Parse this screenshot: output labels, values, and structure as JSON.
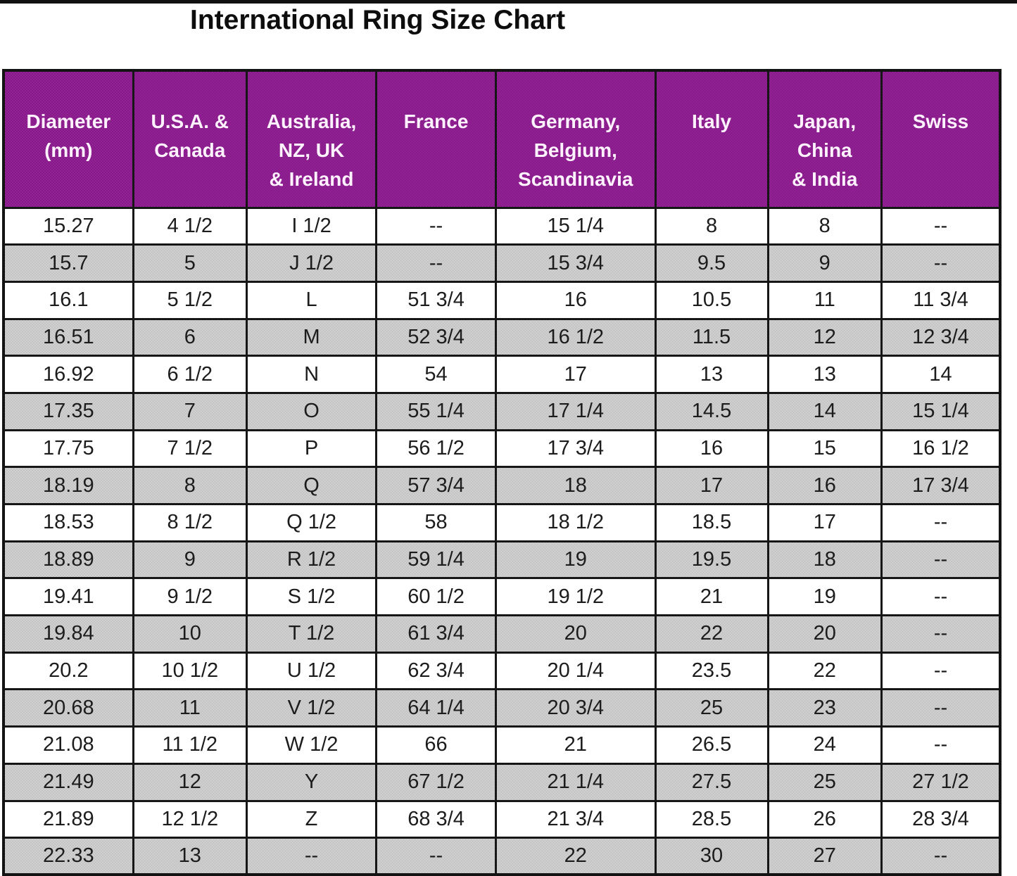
{
  "title": "International Ring Size Chart",
  "colors": {
    "header_bg": "#8C1E8E",
    "header_text": "#FDF2FD",
    "shaded_row_bg": "#C9C9C9",
    "plain_row_bg": "#FFFFFF",
    "border": "#161616",
    "body_text": "#1C1C1C",
    "top_strip": "#101010"
  },
  "table": {
    "headers": [
      {
        "id": "diameter-mm",
        "lines": [
          "Diameter",
          "(mm)"
        ]
      },
      {
        "id": "usa-canada",
        "lines": [
          "U.S.A. &",
          "Canada"
        ]
      },
      {
        "id": "australia-nz-uk-ireland",
        "lines": [
          "Australia,",
          "NZ, UK",
          "& Ireland"
        ]
      },
      {
        "id": "france",
        "lines": [
          "France"
        ]
      },
      {
        "id": "germany-belgium-scandinavia",
        "lines": [
          "Germany,",
          "Belgium,",
          "Scandinavia"
        ]
      },
      {
        "id": "italy",
        "lines": [
          "Italy"
        ]
      },
      {
        "id": "japan-china-india",
        "lines": [
          "Japan,",
          "China",
          "& India"
        ]
      },
      {
        "id": "swiss",
        "lines": [
          "Swiss"
        ]
      }
    ]
  },
  "chart_data": {
    "type": "table",
    "title": "International Ring Size Chart",
    "columns": [
      "Diameter (mm)",
      "U.S.A. & Canada",
      "Australia, NZ, UK & Ireland",
      "France",
      "Germany, Belgium, Scandinavia",
      "Italy",
      "Japan, China & India",
      "Swiss"
    ],
    "rows": [
      [
        "15.27",
        "4 1/2",
        "I 1/2",
        "--",
        "15 1/4",
        "8",
        "8",
        "--"
      ],
      [
        "15.7",
        "5",
        "J 1/2",
        "--",
        "15 3/4",
        "9.5",
        "9",
        "--"
      ],
      [
        "16.1",
        "5 1/2",
        "L",
        "51 3/4",
        "16",
        "10.5",
        "11",
        "11 3/4"
      ],
      [
        "16.51",
        "6",
        "M",
        "52 3/4",
        "16 1/2",
        "11.5",
        "12",
        "12 3/4"
      ],
      [
        "16.92",
        "6 1/2",
        "N",
        "54",
        "17",
        "13",
        "13",
        "14"
      ],
      [
        "17.35",
        "7",
        "O",
        "55 1/4",
        "17 1/4",
        "14.5",
        "14",
        "15 1/4"
      ],
      [
        "17.75",
        "7 1/2",
        "P",
        "56 1/2",
        "17 3/4",
        "16",
        "15",
        "16 1/2"
      ],
      [
        "18.19",
        "8",
        "Q",
        "57 3/4",
        "18",
        "17",
        "16",
        "17 3/4"
      ],
      [
        "18.53",
        "8 1/2",
        "Q 1/2",
        "58",
        "18 1/2",
        "18.5",
        "17",
        "--"
      ],
      [
        "18.89",
        "9",
        "R 1/2",
        "59 1/4",
        "19",
        "19.5",
        "18",
        "--"
      ],
      [
        "19.41",
        "9 1/2",
        "S 1/2",
        "60 1/2",
        "19 1/2",
        "21",
        "19",
        "--"
      ],
      [
        "19.84",
        "10",
        "T 1/2",
        "61 3/4",
        "20",
        "22",
        "20",
        "--"
      ],
      [
        "20.2",
        "10 1/2",
        "U 1/2",
        "62 3/4",
        "20 1/4",
        "23.5",
        "22",
        "--"
      ],
      [
        "20.68",
        "11",
        "V 1/2",
        "64 1/4",
        "20 3/4",
        "25",
        "23",
        "--"
      ],
      [
        "21.08",
        "11 1/2",
        "W 1/2",
        "66",
        "21",
        "26.5",
        "24",
        "--"
      ],
      [
        "21.49",
        "12",
        "Y",
        "67 1/2",
        "21 1/4",
        "27.5",
        "25",
        "27 1/2"
      ],
      [
        "21.89",
        "12 1/2",
        "Z",
        "68 3/4",
        "21 3/4",
        "28.5",
        "26",
        "28 3/4"
      ],
      [
        "22.33",
        "13",
        "--",
        "--",
        "22",
        "30",
        "27",
        "--"
      ]
    ]
  }
}
